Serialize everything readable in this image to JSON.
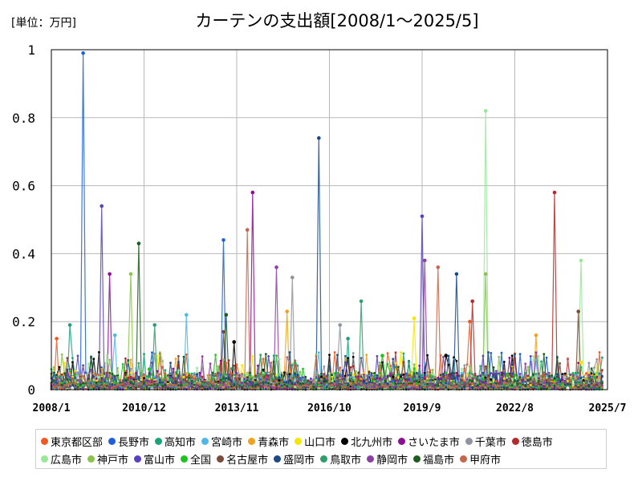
{
  "unit_label": "[単位：万円]",
  "chart_data": {
    "type": "line",
    "title": "カーテンの支出額[2008/1～2025/5]",
    "xlabel": "",
    "ylabel": "",
    "ylim": [
      0,
      1
    ],
    "y_ticks": [
      "0",
      "0.2",
      "0.4",
      "0.6",
      "0.8",
      "1"
    ],
    "x_range": [
      "2008/1",
      "2025/7"
    ],
    "x_ticks": [
      "2008/1",
      "2010/12",
      "2013/11",
      "2016/10",
      "2019/9",
      "2022/8",
      "2025/7"
    ],
    "grid": true,
    "legend_position": "bottom",
    "baseline_note": "",
    "series": [
      {
        "name": "東京都区部",
        "color": "#f05a22",
        "peaks": [
          [
            "2021/3",
            0.2
          ],
          [
            "2008/3",
            0.15
          ]
        ]
      },
      {
        "name": "長野市",
        "color": "#1f5fd9",
        "peaks": [
          [
            "2009/1",
            0.99
          ],
          [
            "2013/6",
            0.44
          ]
        ]
      },
      {
        "name": "高知市",
        "color": "#1aa37a",
        "peaks": [
          [
            "2017/5",
            0.15
          ],
          [
            "2008/8",
            0.19
          ]
        ]
      },
      {
        "name": "宮崎市",
        "color": "#4fb8e8",
        "peaks": [
          [
            "2010/1",
            0.16
          ],
          [
            "2012/4",
            0.22
          ]
        ]
      },
      {
        "name": "青森市",
        "color": "#f0a21a",
        "peaks": [
          [
            "2015/6",
            0.23
          ],
          [
            "2023/4",
            0.16
          ]
        ]
      },
      {
        "name": "山口市",
        "color": "#f5e600",
        "peaks": [
          [
            "2019/6",
            0.21
          ],
          [
            "2024/9",
            0.08
          ]
        ]
      },
      {
        "name": "北九州市",
        "color": "#000000",
        "peaks": [
          [
            "2013/10",
            0.14
          ],
          [
            "2020/6",
            0.1
          ]
        ]
      },
      {
        "name": "さいたま市",
        "color": "#8b0f93",
        "peaks": [
          [
            "2014/5",
            0.58
          ],
          [
            "2009/11",
            0.34
          ]
        ]
      },
      {
        "name": "千葉市",
        "color": "#8f959e",
        "peaks": [
          [
            "2015/8",
            0.33
          ],
          [
            "2017/2",
            0.19
          ]
        ]
      },
      {
        "name": "徳島市",
        "color": "#b22a2a",
        "peaks": [
          [
            "2023/11",
            0.58
          ],
          [
            "2021/4",
            0.26
          ]
        ]
      },
      {
        "name": "広島市",
        "color": "#98e898",
        "peaks": [
          [
            "2021/9",
            0.82
          ],
          [
            "2024/9",
            0.38
          ]
        ]
      },
      {
        "name": "神戸市",
        "color": "#8bc34a",
        "peaks": [
          [
            "2021/9",
            0.34
          ],
          [
            "2010/7",
            0.34
          ]
        ]
      },
      {
        "name": "富山市",
        "color": "#5a3fc4",
        "peaks": [
          [
            "2019/9",
            0.51
          ],
          [
            "2009/8",
            0.54
          ]
        ]
      },
      {
        "name": "全国",
        "color": "#1ec31e",
        "peaks": [
          [
            "2018/6",
            0.1
          ],
          [
            "2011/2",
            0.06
          ]
        ]
      },
      {
        "name": "名古屋市",
        "color": "#7a4a3a",
        "peaks": [
          [
            "2024/8",
            0.23
          ],
          [
            "2013/6",
            0.17
          ]
        ]
      },
      {
        "name": "盛岡市",
        "color": "#1c4a87",
        "peaks": [
          [
            "2016/6",
            0.74
          ],
          [
            "2020/10",
            0.34
          ]
        ]
      },
      {
        "name": "鳥取市",
        "color": "#2e9e6b",
        "peaks": [
          [
            "2017/10",
            0.26
          ],
          [
            "2011/4",
            0.19
          ]
        ]
      },
      {
        "name": "静岡市",
        "color": "#8e3fa3",
        "peaks": [
          [
            "2015/2",
            0.36
          ],
          [
            "2019/10",
            0.38
          ]
        ]
      },
      {
        "name": "福島市",
        "color": "#1e5b1e",
        "peaks": [
          [
            "2010/10",
            0.43
          ],
          [
            "2013/7",
            0.22
          ]
        ]
      },
      {
        "name": "甲府市",
        "color": "#c8664a",
        "peaks": [
          [
            "2014/3",
            0.47
          ],
          [
            "2020/3",
            0.36
          ]
        ]
      }
    ]
  }
}
